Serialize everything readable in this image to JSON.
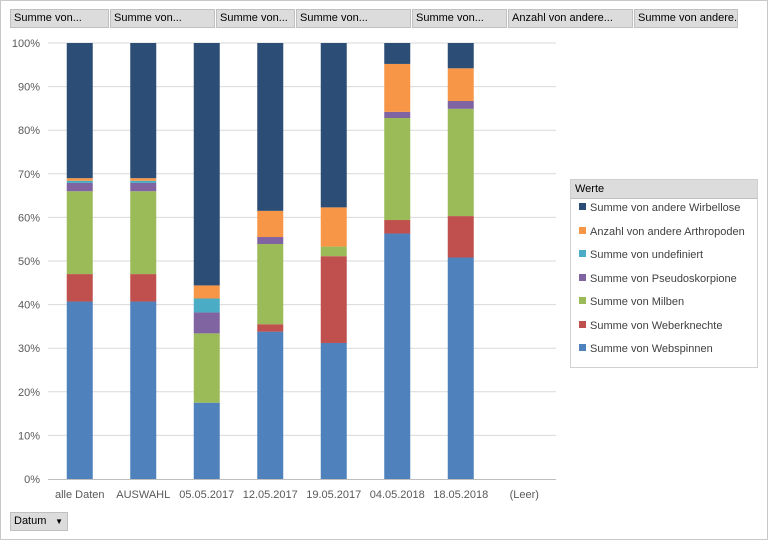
{
  "value_fields": [
    "Summe von...",
    "Summe von...",
    "Summe von...",
    "Summe von...",
    "Summe von...",
    "Anzahl von andere...",
    "Summe von andere..."
  ],
  "legend_title": "Werte",
  "axis_field": "Datum",
  "colors": {
    "webspinnen": "#4F81BD",
    "weberknechte": "#C0504D",
    "milben": "#9BBB59",
    "pseudoskorpione": "#8064A2",
    "undefiniert": "#4BACC6",
    "arthropoden": "#F79646",
    "wirbellose": "#2C4D75"
  },
  "chart_data": {
    "type": "bar",
    "stacked": "percent",
    "categories": [
      "alle Daten",
      "AUSWAHL",
      "05.05.2017",
      "12.05.2017",
      "19.05.2017",
      "04.05.2018",
      "18.05.2018",
      "(Leer)"
    ],
    "ylim": [
      0,
      100
    ],
    "yticks": [
      "0%",
      "10%",
      "20%",
      "30%",
      "40%",
      "50%",
      "60%",
      "70%",
      "80%",
      "90%",
      "100%"
    ],
    "legend_position": "right",
    "series": [
      {
        "name": "Summe von Webspinnen",
        "key": "webspinnen",
        "values": [
          40.7,
          40.7,
          17.5,
          33.8,
          31.2,
          56.3,
          50.8,
          0
        ]
      },
      {
        "name": "Summe von Weberknechte",
        "key": "weberknechte",
        "values": [
          6.3,
          6.3,
          0,
          1.7,
          19.9,
          3.1,
          9.5,
          0
        ]
      },
      {
        "name": "Summe von Milben",
        "key": "milben",
        "values": [
          19.0,
          19.0,
          15.9,
          18.4,
          2.2,
          23.4,
          24.6,
          0
        ]
      },
      {
        "name": "Summe von Pseudoskorpione",
        "key": "pseudoskorpione",
        "values": [
          1.9,
          1.9,
          4.8,
          1.6,
          0,
          1.4,
          1.8,
          0
        ]
      },
      {
        "name": "Summe von undefiniert",
        "key": "undefiniert",
        "values": [
          0.5,
          0.5,
          3.2,
          0,
          0,
          0,
          0,
          0
        ]
      },
      {
        "name": "Anzahl von andere Arthropoden",
        "key": "arthropoden",
        "values": [
          0.6,
          0.6,
          3.0,
          6.0,
          9.0,
          11.0,
          7.5,
          0
        ]
      },
      {
        "name": "Summe von andere Wirbellose",
        "key": "wirbellose",
        "values": [
          31.0,
          31.0,
          55.6,
          38.5,
          37.7,
          4.8,
          5.8,
          0
        ]
      }
    ]
  }
}
